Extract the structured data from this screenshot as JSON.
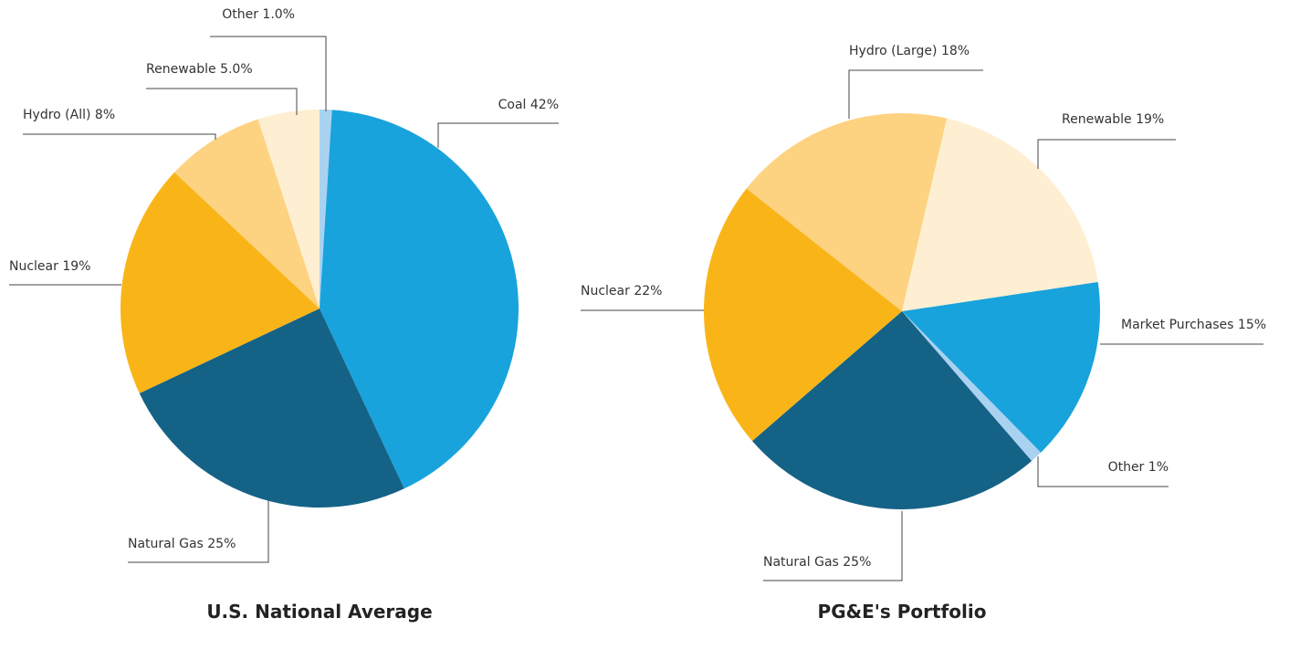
{
  "chart_data": [
    {
      "type": "pie",
      "title": "U.S. National Average",
      "categories": [
        "Other",
        "Coal",
        "Natural Gas",
        "Nuclear",
        "Hydro (All)",
        "Renewable"
      ],
      "values": [
        1.0,
        42,
        25,
        19,
        8,
        5.0
      ],
      "value_labels": [
        "1.0%",
        "42%",
        "25%",
        "19%",
        "8%",
        "5.0%"
      ],
      "colors": [
        "#a9d2f0",
        "#19a3dc",
        "#156287",
        "#f9b518",
        "#fdd281",
        "#feefd2"
      ]
    },
    {
      "type": "pie",
      "title": "PG&E's Portfolio",
      "categories": [
        "Market Purchases",
        "Other",
        "Natural Gas",
        "Nuclear",
        "Hydro (Large)",
        "Renewable"
      ],
      "values": [
        15,
        1,
        25,
        22,
        18,
        19
      ],
      "value_labels": [
        "15%",
        "1%",
        "25%",
        "22%",
        "18%",
        "19%"
      ],
      "colors": [
        "#19a3dc",
        "#a9d2f0",
        "#156287",
        "#f9b518",
        "#fdd281",
        "#feefd2"
      ]
    }
  ]
}
